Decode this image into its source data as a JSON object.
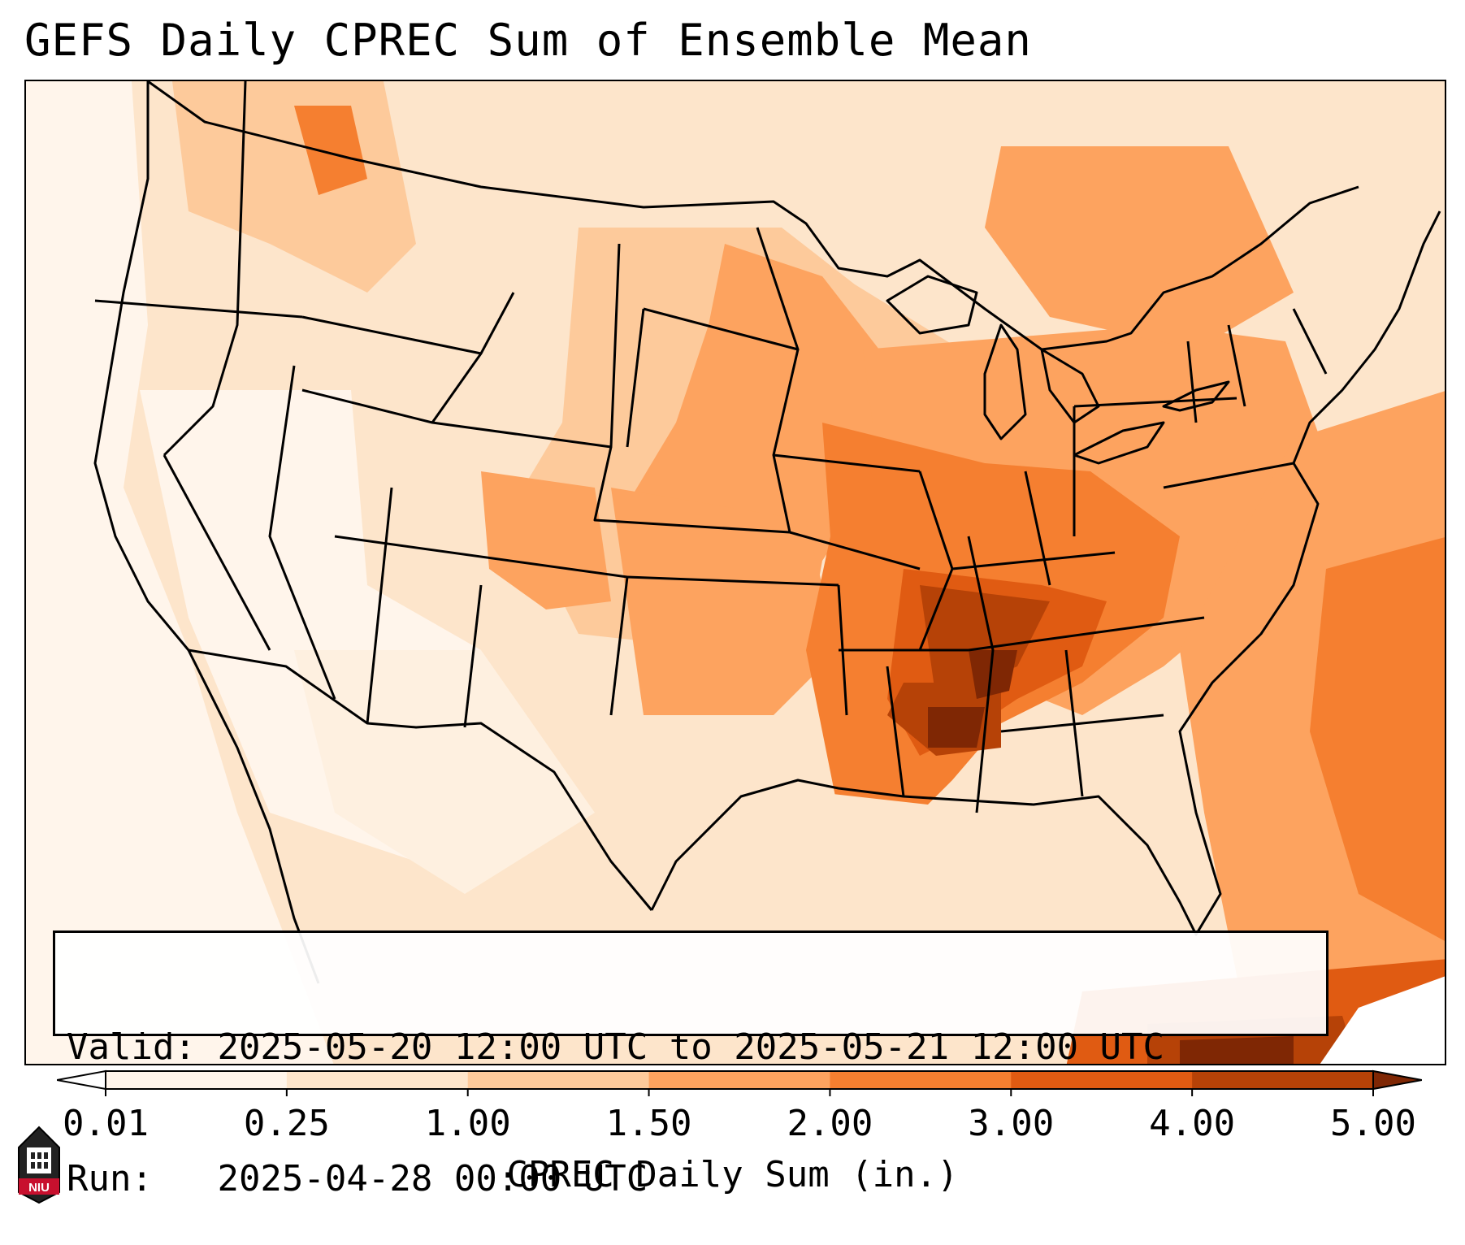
{
  "title": "GEFS Daily CPREC Sum of Ensemble Mean",
  "info": {
    "valid_label": "Valid:",
    "valid_value": "2025-05-20 12:00 UTC to 2025-05-21 12:00 UTC",
    "run_label": "Run:",
    "run_value": "2025-04-28 00:00 UTC"
  },
  "colorbar": {
    "label": "CPREC Daily Sum (in.)",
    "ticks": [
      "0.01",
      "0.25",
      "1.00",
      "1.50",
      "2.00",
      "3.00",
      "4.00",
      "5.00"
    ],
    "colors": [
      "#fff5eb",
      "#fde5cb",
      "#fdca9b",
      "#fda35f",
      "#f57f30",
      "#e05b12",
      "#b64207",
      "#7f2704"
    ],
    "under_color": "#ffffff",
    "over_color": "#7f2704"
  },
  "logo": {
    "text": "NIU",
    "color": "#c8102e"
  },
  "chart_data": {
    "type": "heatmap",
    "title": "GEFS Daily CPREC Sum of Ensemble Mean",
    "variable": "CPREC Daily Sum",
    "units": "in.",
    "levels": [
      0.01,
      0.25,
      1.0,
      1.5,
      2.0,
      3.0,
      4.0,
      5.0
    ],
    "valid_start": "2025-05-20 12:00 UTC",
    "valid_end": "2025-05-21 12:00 UTC",
    "run": "2025-04-28 00:00 UTC",
    "region": "Continental United States"
  }
}
